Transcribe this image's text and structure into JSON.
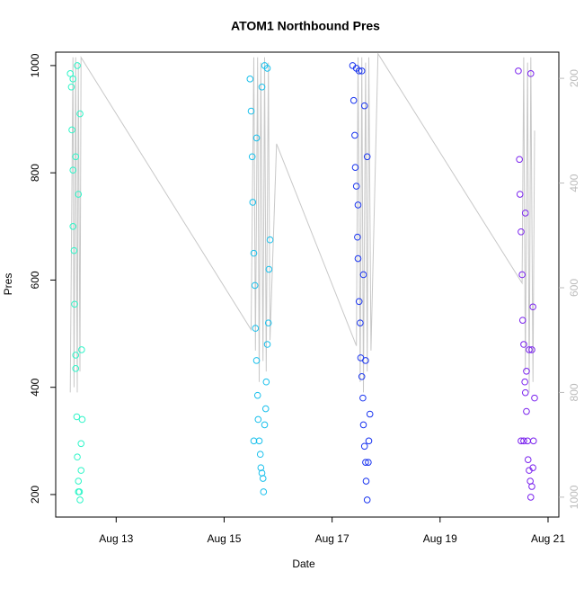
{
  "chart_data": {
    "type": "scatter",
    "title": "ATOM1 Northbound Pres",
    "x_label": "Date",
    "y_label": "Pres",
    "xlim": [
      11.88,
      21.2
    ],
    "xticks": [
      {
        "value": 13,
        "label": "Aug 13"
      },
      {
        "value": 15,
        "label": "Aug 15"
      },
      {
        "value": 17,
        "label": "Aug 17"
      },
      {
        "value": 19,
        "label": "Aug 19"
      },
      {
        "value": 21,
        "label": "Aug 21"
      }
    ],
    "ylim": [
      158,
      1025
    ],
    "yticks": [
      200,
      400,
      600,
      800,
      1000
    ],
    "y2lim": [
      1038,
      150
    ],
    "y2ticks": [
      200,
      400,
      600,
      800,
      1000
    ],
    "y2_color": "#bbbbbb",
    "series": [
      {
        "color": "#2ef5c8",
        "x": [
          12.15,
          12.17,
          12.18,
          12.2,
          12.2,
          12.22,
          12.23,
          12.25,
          12.25,
          12.27,
          12.28,
          12.3,
          12.3,
          12.32,
          12.33,
          12.35,
          12.35,
          12.37,
          12.2,
          12.28,
          12.3,
          12.33,
          12.25,
          12.36
        ],
        "values": [
          985,
          960,
          880,
          805,
          700,
          655,
          555,
          460,
          435,
          345,
          270,
          225,
          205,
          205,
          190,
          245,
          295,
          340,
          975,
          1000,
          760,
          910,
          830,
          470
        ]
      },
      {
        "color": "#19c0ec",
        "x": [
          15.48,
          15.5,
          15.52,
          15.53,
          15.55,
          15.57,
          15.58,
          15.6,
          15.62,
          15.63,
          15.65,
          15.67,
          15.68,
          15.7,
          15.72,
          15.73,
          15.75,
          15.77,
          15.78,
          15.8,
          15.82,
          15.83,
          15.85,
          15.55,
          15.6,
          15.7,
          15.75,
          15.8
        ],
        "values": [
          975,
          915,
          830,
          745,
          650,
          590,
          510,
          450,
          385,
          340,
          300,
          275,
          250,
          240,
          230,
          205,
          330,
          360,
          410,
          480,
          520,
          620,
          675,
          300,
          865,
          960,
          1000,
          995
        ]
      },
      {
        "color": "#1a35f0",
        "x": [
          17.38,
          17.4,
          17.42,
          17.43,
          17.45,
          17.47,
          17.48,
          17.5,
          17.52,
          17.53,
          17.55,
          17.57,
          17.58,
          17.6,
          17.62,
          17.63,
          17.65,
          17.67,
          17.68,
          17.7,
          17.45,
          17.5,
          17.55,
          17.6,
          17.65,
          17.48,
          17.58,
          17.62
        ],
        "values": [
          1000,
          935,
          870,
          810,
          775,
          680,
          640,
          560,
          520,
          455,
          420,
          380,
          330,
          290,
          260,
          225,
          190,
          260,
          300,
          350,
          995,
          990,
          990,
          925,
          830,
          740,
          610,
          450
        ]
      },
      {
        "color": "#7a22ee",
        "x": [
          20.45,
          20.47,
          20.48,
          20.5,
          20.52,
          20.53,
          20.55,
          20.57,
          20.58,
          20.6,
          20.62,
          20.63,
          20.65,
          20.67,
          20.68,
          20.7,
          20.72,
          20.73,
          20.75,
          20.5,
          20.55,
          20.6,
          20.65,
          20.7,
          20.72,
          20.58,
          20.68
        ],
        "values": [
          990,
          825,
          760,
          690,
          610,
          525,
          480,
          410,
          390,
          355,
          300,
          265,
          245,
          225,
          195,
          215,
          250,
          300,
          380,
          300,
          300,
          430,
          470,
          470,
          550,
          725,
          985
        ]
      }
    ],
    "line": {
      "color": "#c8c8c8",
      "axis": "y2",
      "x": [
        12.15,
        12.2,
        12.22,
        12.25,
        12.28,
        12.3,
        12.33,
        12.35,
        15.5,
        15.55,
        15.58,
        15.62,
        15.65,
        15.68,
        15.72,
        15.75,
        15.78,
        15.82,
        15.85,
        15.97,
        17.45,
        17.48,
        17.52,
        17.55,
        17.58,
        17.62,
        17.65,
        17.68,
        17.72,
        17.85,
        20.52,
        20.55,
        20.58,
        20.62,
        20.65,
        20.68,
        20.72,
        20.75
      ],
      "values": [
        800,
        160,
        790,
        160,
        800,
        170,
        760,
        160,
        680,
        160,
        720,
        160,
        780,
        170,
        740,
        160,
        760,
        170,
        700,
        325,
        711,
        160,
        780,
        160,
        800,
        170,
        760,
        160,
        720,
        153,
        591,
        160,
        760,
        170,
        800,
        160,
        780,
        300
      ]
    }
  }
}
